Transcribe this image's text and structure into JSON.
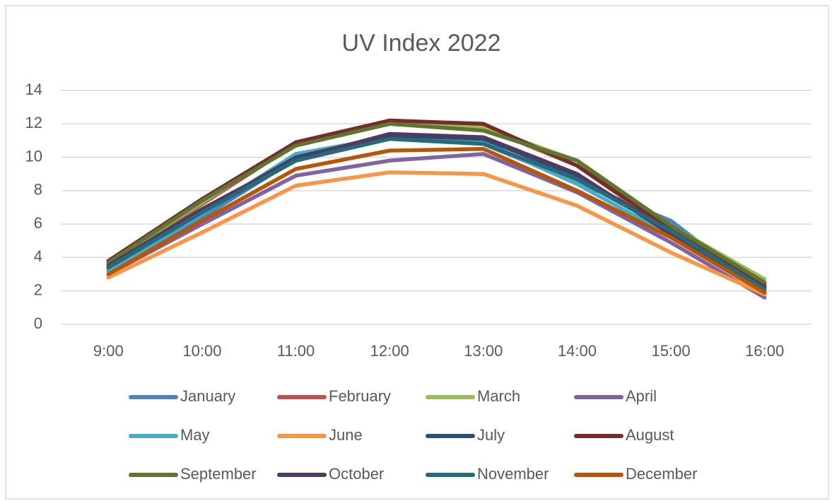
{
  "chart_data": {
    "type": "line",
    "title": "UV Index 2022",
    "categories": [
      "9:00",
      "10:00",
      "11:00",
      "12:00",
      "13:00",
      "14:00",
      "15:00",
      "16:00"
    ],
    "series": [
      {
        "name": "January",
        "color": "#4f81bd",
        "values": [
          3.3,
          6.4,
          9.9,
          11.1,
          10.8,
          8.5,
          6.2,
          1.9
        ]
      },
      {
        "name": "February",
        "color": "#c0504d",
        "values": [
          3.6,
          7.2,
          10.8,
          12.1,
          11.8,
          9.5,
          5.6,
          2.3
        ]
      },
      {
        "name": "March",
        "color": "#9bbb59",
        "values": [
          3.7,
          7.3,
          10.9,
          12.1,
          11.8,
          9.8,
          5.9,
          2.7
        ]
      },
      {
        "name": "April",
        "color": "#8064a2",
        "values": [
          3.0,
          6.0,
          8.9,
          9.8,
          10.2,
          7.9,
          4.9,
          1.6
        ]
      },
      {
        "name": "May",
        "color": "#4bacc6",
        "values": [
          3.2,
          6.6,
          10.2,
          11.2,
          10.9,
          8.4,
          5.3,
          2.0
        ]
      },
      {
        "name": "June",
        "color": "#f79646",
        "values": [
          2.8,
          5.5,
          8.3,
          9.1,
          9.0,
          7.1,
          4.3,
          1.8
        ]
      },
      {
        "name": "July",
        "color": "#2c4d75",
        "values": [
          3.4,
          6.8,
          10.0,
          11.3,
          11.1,
          8.9,
          5.6,
          2.2
        ]
      },
      {
        "name": "August",
        "color": "#772c2a",
        "values": [
          3.8,
          7.5,
          10.9,
          12.2,
          12.0,
          9.5,
          5.7,
          2.4
        ]
      },
      {
        "name": "September",
        "color": "#5f7530",
        "values": [
          3.7,
          7.4,
          10.7,
          12.0,
          11.6,
          9.8,
          5.9,
          2.5
        ]
      },
      {
        "name": "October",
        "color": "#4d3b62",
        "values": [
          3.5,
          6.9,
          9.9,
          11.4,
          11.2,
          9.0,
          5.4,
          2.2
        ]
      },
      {
        "name": "November",
        "color": "#276a7c",
        "values": [
          3.4,
          6.7,
          9.8,
          11.1,
          10.8,
          8.7,
          5.6,
          2.1
        ]
      },
      {
        "name": "December",
        "color": "#b65708",
        "values": [
          3.0,
          6.2,
          9.3,
          10.4,
          10.5,
          8.0,
          5.2,
          1.9
        ]
      }
    ],
    "ylim": [
      0,
      14
    ],
    "yticks": [
      0,
      2,
      4,
      6,
      8,
      10,
      12,
      14
    ],
    "grid": true,
    "legend": "bottom"
  }
}
